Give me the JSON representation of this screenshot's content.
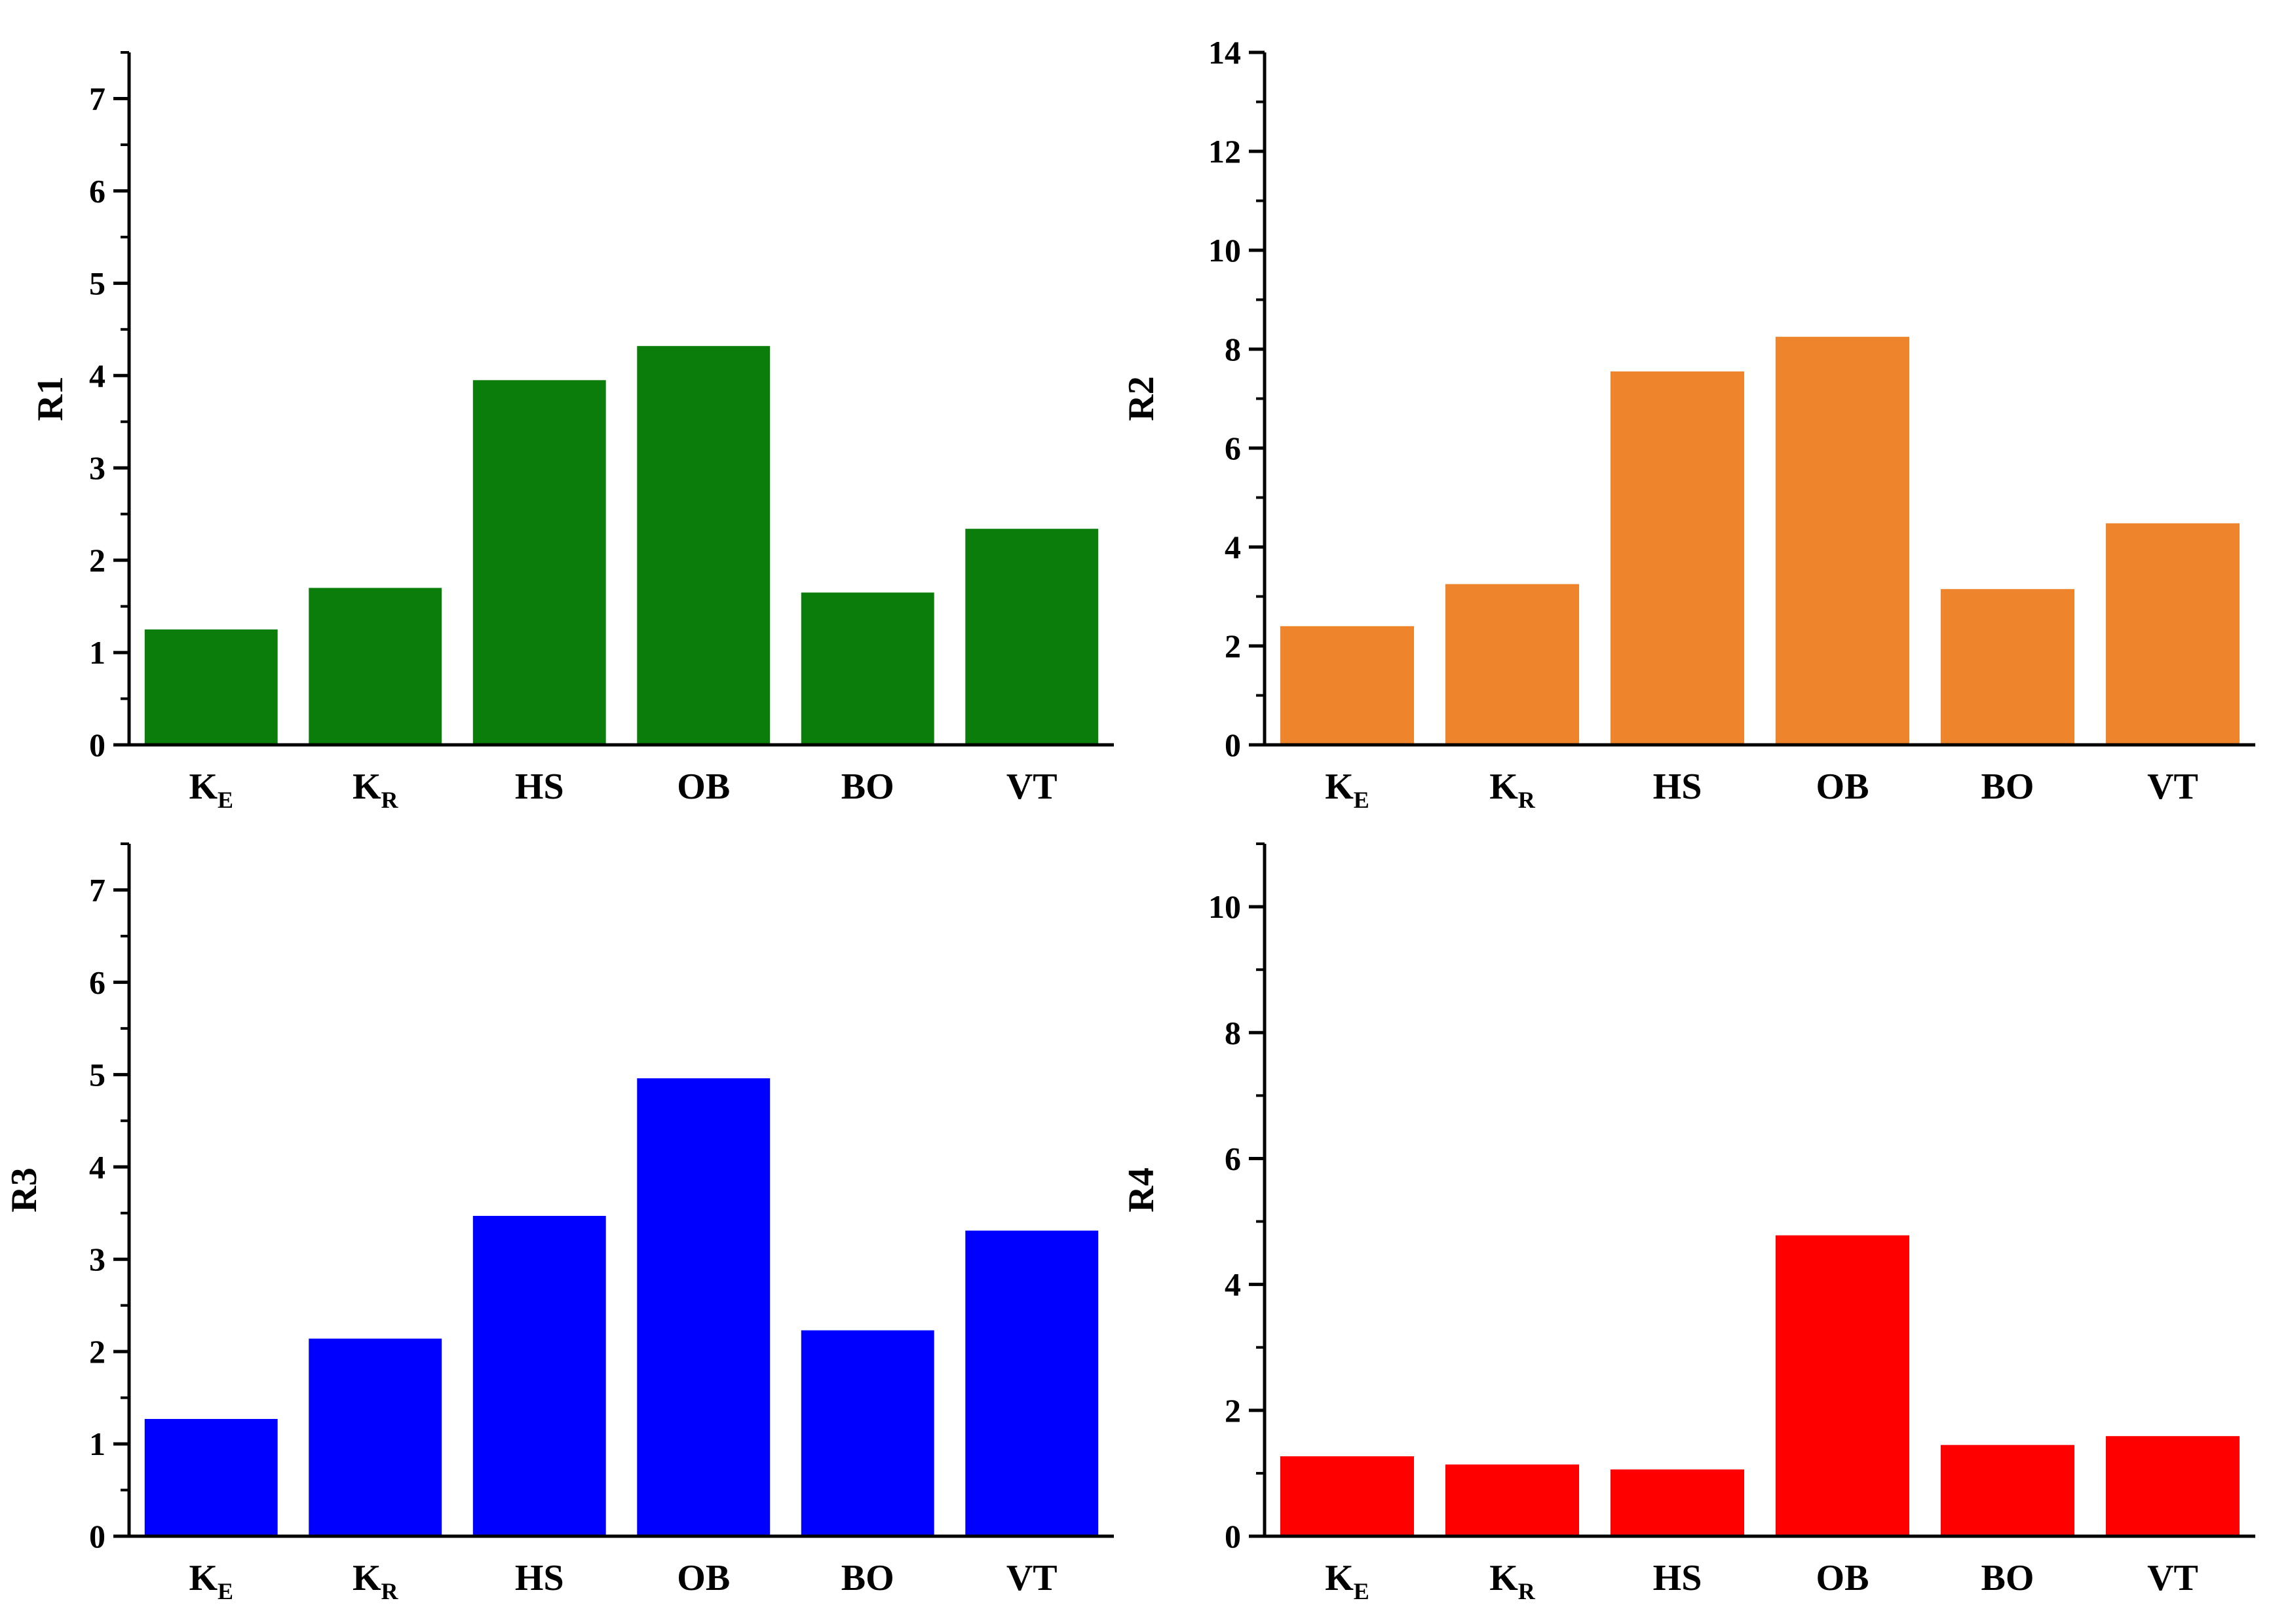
{
  "chart_data": [
    {
      "type": "bar",
      "ylabel": "R1",
      "xlabel": "",
      "categories": [
        {
          "main": "K",
          "sub": "E"
        },
        {
          "main": "K",
          "sub": "R"
        },
        {
          "main": "HS",
          "sub": ""
        },
        {
          "main": "OB",
          "sub": ""
        },
        {
          "main": "BO",
          "sub": ""
        },
        {
          "main": "VT",
          "sub": ""
        }
      ],
      "values": [
        1.25,
        1.7,
        3.95,
        4.32,
        1.65,
        2.34
      ],
      "ylim": [
        0,
        7.5
      ],
      "yticks": [
        0,
        1,
        2,
        3,
        4,
        5,
        6,
        7
      ],
      "color": "#0a7d0a"
    },
    {
      "type": "bar",
      "ylabel": "R2",
      "xlabel": "",
      "categories": [
        {
          "main": "K",
          "sub": "E"
        },
        {
          "main": "K",
          "sub": "R"
        },
        {
          "main": "HS",
          "sub": ""
        },
        {
          "main": "OB",
          "sub": ""
        },
        {
          "main": "BO",
          "sub": ""
        },
        {
          "main": "VT",
          "sub": ""
        }
      ],
      "values": [
        2.4,
        3.25,
        7.55,
        8.25,
        3.15,
        4.48
      ],
      "ylim": [
        0,
        14
      ],
      "yticks": [
        0,
        2,
        4,
        6,
        8,
        10,
        12,
        14
      ],
      "color": "#ee852c"
    },
    {
      "type": "bar",
      "ylabel": "R3",
      "xlabel": "",
      "categories": [
        {
          "main": "K",
          "sub": "E"
        },
        {
          "main": "K",
          "sub": "R"
        },
        {
          "main": "HS",
          "sub": ""
        },
        {
          "main": "OB",
          "sub": ""
        },
        {
          "main": "BO",
          "sub": ""
        },
        {
          "main": "VT",
          "sub": ""
        }
      ],
      "values": [
        1.27,
        2.14,
        3.47,
        4.96,
        2.23,
        3.31
      ],
      "ylim": [
        0,
        7.5
      ],
      "yticks": [
        0,
        1,
        2,
        3,
        4,
        5,
        6,
        7
      ],
      "color": "#0000ff"
    },
    {
      "type": "bar",
      "ylabel": "R4",
      "xlabel": "",
      "categories": [
        {
          "main": "K",
          "sub": "E"
        },
        {
          "main": "K",
          "sub": "R"
        },
        {
          "main": "HS",
          "sub": ""
        },
        {
          "main": "OB",
          "sub": ""
        },
        {
          "main": "BO",
          "sub": ""
        },
        {
          "main": "VT",
          "sub": ""
        }
      ],
      "values": [
        1.27,
        1.14,
        1.06,
        4.78,
        1.45,
        1.59
      ],
      "ylim": [
        0,
        11
      ],
      "yticks": [
        0,
        2,
        4,
        6,
        8,
        10
      ],
      "color": "#ff0000"
    }
  ]
}
